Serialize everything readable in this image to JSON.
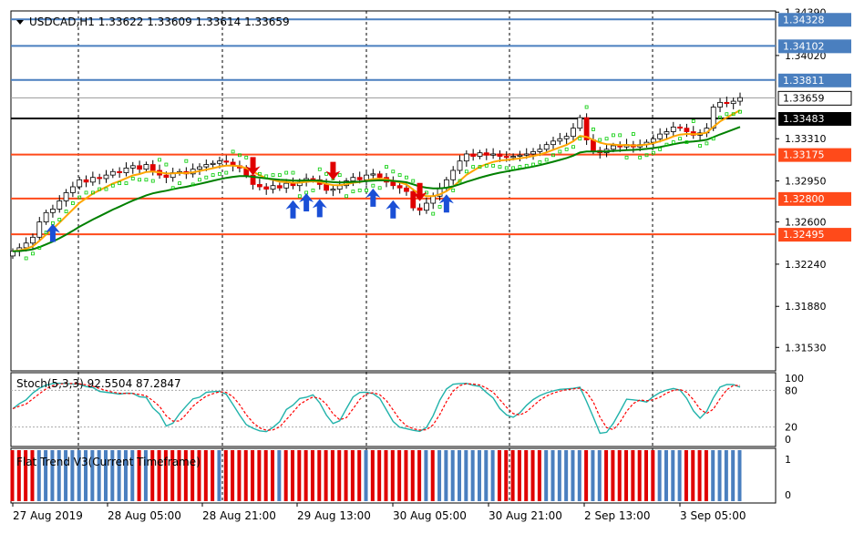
{
  "chart_data": {
    "type": "candlestick",
    "symbol_header": "USDCAD,H1  1.33622 1.33609 1.33614 1.33659",
    "main": {
      "ylim": [
        1.3133,
        1.344
      ],
      "yticks": [
        "1.34390",
        "1.34020",
        "1.33310",
        "1.32950",
        "1.32600",
        "1.32240",
        "1.31880",
        "1.31530"
      ],
      "yticks_values": [
        1.3439,
        1.3402,
        1.3331,
        1.3295,
        1.326,
        1.3224,
        1.3188,
        1.3153
      ],
      "horizontal_levels": [
        {
          "label": "1.34328",
          "value": 1.34328,
          "color": "#4a7fbf"
        },
        {
          "label": "1.34102",
          "value": 1.34102,
          "color": "#4a7fbf"
        },
        {
          "label": "1.33811",
          "value": 1.33811,
          "color": "#4a7fbf"
        },
        {
          "label": "1.33483",
          "value": 1.33483,
          "color": "#000000"
        },
        {
          "label": "1.33175",
          "value": 1.33175,
          "color": "#ff4a1a"
        },
        {
          "label": "1.32800",
          "value": 1.328,
          "color": "#ff4a1a"
        },
        {
          "label": "1.32495",
          "value": 1.32495,
          "color": "#ff4a1a"
        }
      ],
      "current_price": {
        "label": "1.33659",
        "value": 1.33659
      },
      "ema_fast_color": "#ffa500",
      "ma_slow_color": "#008000",
      "sar_color": "#00cc00",
      "arrows": [
        {
          "i": 6,
          "dir": "up"
        },
        {
          "i": 36,
          "dir": "down"
        },
        {
          "i": 42,
          "dir": "up"
        },
        {
          "i": 44,
          "dir": "up"
        },
        {
          "i": 46,
          "dir": "up"
        },
        {
          "i": 48,
          "dir": "down"
        },
        {
          "i": 54,
          "dir": "up"
        },
        {
          "i": 57,
          "dir": "up"
        },
        {
          "i": 61,
          "dir": "down"
        },
        {
          "i": 65,
          "dir": "up"
        }
      ]
    },
    "stoch": {
      "label": "Stoch(5,3,3) 92.5504 87.2847",
      "yticks": [
        "100",
        "80",
        "20",
        "0"
      ],
      "levels": [
        80,
        20
      ],
      "main_color": "#20b2aa",
      "signal_color": "#ff0000"
    },
    "flat_trend": {
      "label": "Flat Trend V3(Current Timeframe)",
      "yticks": [
        "1",
        "0"
      ],
      "up_color": "#4a7fbf",
      "flat_color": "#e00000"
    },
    "xticks": [
      "27 Aug 2019",
      "28 Aug 05:00",
      "28 Aug 21:00",
      "29 Aug 13:00",
      "30 Aug 05:00",
      "30 Aug 21:00",
      "2 Sep 13:00",
      "3 Sep 05:00"
    ],
    "close_series": [
      1.3235,
      1.3238,
      1.3242,
      1.3247,
      1.326,
      1.3268,
      1.3271,
      1.3278,
      1.3285,
      1.329,
      1.3296,
      1.3294,
      1.3298,
      1.3297,
      1.33,
      1.3303,
      1.3302,
      1.3306,
      1.3308,
      1.3305,
      1.3309,
      1.3304,
      1.33,
      1.3298,
      1.3302,
      1.3303,
      1.3301,
      1.3305,
      1.3307,
      1.3309,
      1.331,
      1.3312,
      1.3311,
      1.3308,
      1.3306,
      1.33,
      1.3292,
      1.329,
      1.3288,
      1.3291,
      1.3289,
      1.3293,
      1.3291,
      1.3294,
      1.3297,
      1.3296,
      1.3292,
      1.3287,
      1.3288,
      1.3291,
      1.3295,
      1.3298,
      1.3296,
      1.33,
      1.3301,
      1.3298,
      1.3294,
      1.3291,
      1.3289,
      1.3286,
      1.3272,
      1.327,
      1.3276,
      1.3282,
      1.3289,
      1.3296,
      1.3304,
      1.3312,
      1.3318,
      1.3316,
      1.3319,
      1.3317,
      1.3318,
      1.3316,
      1.3315,
      1.3316,
      1.3317,
      1.3318,
      1.332,
      1.3322,
      1.3326,
      1.3329,
      1.3331,
      1.3333,
      1.334,
      1.3349,
      1.333,
      1.3321,
      1.3319,
      1.3322,
      1.3325,
      1.3324,
      1.3326,
      1.3324,
      1.3326,
      1.3328,
      1.3331,
      1.3335,
      1.3337,
      1.3341,
      1.334,
      1.3337,
      1.3334,
      1.3336,
      1.334,
      1.3358,
      1.3362,
      1.3361,
      1.3363,
      1.3366
    ]
  }
}
